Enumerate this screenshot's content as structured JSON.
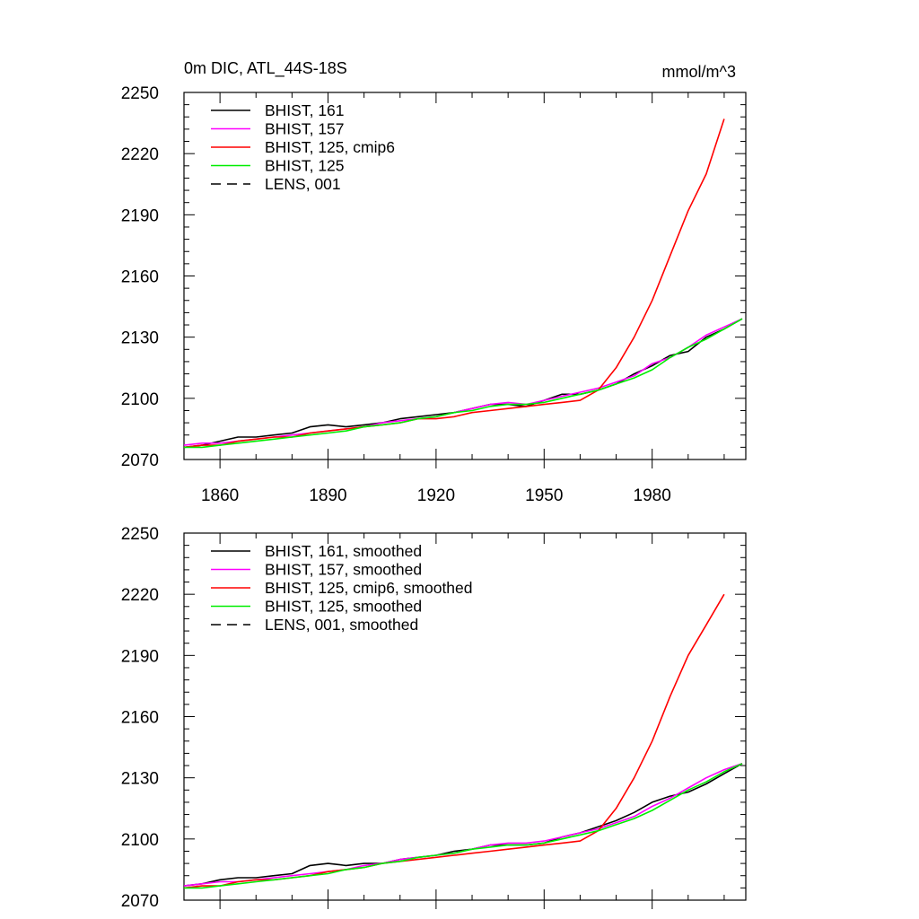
{
  "chart_data": [
    {
      "type": "line",
      "title": "0m DIC, ATL_44S-18S",
      "units": "mmol/m^3",
      "xlabel": "",
      "ylabel": "",
      "xlim": [
        1850,
        2006
      ],
      "ylim": [
        2070,
        2250
      ],
      "xticks": [
        "1860",
        "1890",
        "1920",
        "1950",
        "1980"
      ],
      "yticks": [
        "2070",
        "2100",
        "2130",
        "2160",
        "2190",
        "2220",
        "2250"
      ],
      "legend_position": "top-left",
      "series": [
        {
          "name": "BHIST, 161",
          "color": "#000000",
          "dash": "solid",
          "x": [
            1850,
            1855,
            1860,
            1865,
            1870,
            1875,
            1880,
            1885,
            1890,
            1895,
            1900,
            1905,
            1910,
            1915,
            1920,
            1925,
            1930,
            1935,
            1940,
            1945,
            1950,
            1955,
            1960,
            1965,
            1970,
            1975,
            1980,
            1985,
            1990,
            1995,
            2000,
            2005
          ],
          "y": [
            2076,
            2077,
            2079,
            2081,
            2081,
            2082,
            2083,
            2086,
            2087,
            2086,
            2087,
            2088,
            2090,
            2091,
            2092,
            2093,
            2095,
            2097,
            2097,
            2096,
            2099,
            2102,
            2102,
            2104,
            2107,
            2112,
            2116,
            2121,
            2123,
            2130,
            2134,
            2139
          ]
        },
        {
          "name": "BHIST, 157",
          "color": "#ff00ff",
          "dash": "solid",
          "x": [
            1850,
            1855,
            1860,
            1865,
            1870,
            1875,
            1880,
            1885,
            1890,
            1895,
            1900,
            1905,
            1910,
            1915,
            1920,
            1925,
            1930,
            1935,
            1940,
            1945,
            1950,
            1955,
            1960,
            1965,
            1970,
            1975,
            1980,
            1985,
            1990,
            1995,
            2000,
            2005
          ],
          "y": [
            2077,
            2078,
            2078,
            2079,
            2080,
            2081,
            2082,
            2083,
            2084,
            2085,
            2086,
            2088,
            2089,
            2090,
            2091,
            2093,
            2095,
            2097,
            2098,
            2097,
            2099,
            2101,
            2103,
            2105,
            2108,
            2111,
            2117,
            2120,
            2125,
            2131,
            2135,
            2139
          ]
        },
        {
          "name": "BHIST, 125, cmip6",
          "color": "#ff0000",
          "dash": "solid",
          "x": [
            1850,
            1855,
            1860,
            1865,
            1870,
            1875,
            1880,
            1885,
            1890,
            1895,
            1900,
            1905,
            1910,
            1915,
            1920,
            1925,
            1930,
            1935,
            1940,
            1945,
            1950,
            1955,
            1960,
            1965,
            1970,
            1975,
            1980,
            1985,
            1990,
            1995,
            2000
          ],
          "y": [
            2076,
            2077,
            2077,
            2079,
            2080,
            2081,
            2081,
            2083,
            2084,
            2085,
            2086,
            2087,
            2088,
            2090,
            2090,
            2091,
            2093,
            2094,
            2095,
            2096,
            2097,
            2098,
            2099,
            2104,
            2115,
            2130,
            2148,
            2170,
            2192,
            2210,
            2237
          ]
        },
        {
          "name": "BHIST, 125",
          "color": "#00ee00",
          "dash": "solid",
          "x": [
            1850,
            1855,
            1860,
            1865,
            1870,
            1875,
            1880,
            1885,
            1890,
            1895,
            1900,
            1905,
            1910,
            1915,
            1920,
            1925,
            1930,
            1935,
            1940,
            1945,
            1950,
            1955,
            1960,
            1965,
            1970,
            1975,
            1980,
            1985,
            1990,
            1995,
            2000,
            2005
          ],
          "y": [
            2076,
            2076,
            2077,
            2078,
            2079,
            2080,
            2081,
            2082,
            2083,
            2084,
            2086,
            2087,
            2088,
            2090,
            2091,
            2093,
            2094,
            2096,
            2097,
            2097,
            2098,
            2100,
            2102,
            2104,
            2107,
            2110,
            2114,
            2120,
            2125,
            2129,
            2134,
            2139
          ]
        },
        {
          "name": "LENS, 001",
          "color": "#000000",
          "dash": "dashed",
          "x": [],
          "y": []
        }
      ]
    },
    {
      "type": "line",
      "title": "",
      "units": "",
      "xlabel": "",
      "ylabel": "",
      "xlim": [
        1850,
        2006
      ],
      "ylim": [
        2070,
        2250
      ],
      "xticks": [
        "",
        "",
        "",
        "",
        ""
      ],
      "yticks": [
        "2070",
        "2100",
        "2130",
        "2160",
        "2190",
        "2220",
        "2250"
      ],
      "legend_position": "top-left",
      "series": [
        {
          "name": "BHIST, 161, smoothed",
          "color": "#000000",
          "dash": "solid",
          "x": [
            1850,
            1855,
            1860,
            1865,
            1870,
            1875,
            1880,
            1885,
            1890,
            1895,
            1900,
            1905,
            1910,
            1915,
            1920,
            1925,
            1930,
            1935,
            1940,
            1945,
            1950,
            1955,
            1960,
            1965,
            1970,
            1975,
            1980,
            1985,
            1990,
            1995,
            2000,
            2005
          ],
          "y": [
            2077,
            2078,
            2080,
            2081,
            2081,
            2082,
            2083,
            2087,
            2088,
            2087,
            2088,
            2088,
            2090,
            2091,
            2092,
            2094,
            2095,
            2097,
            2097,
            2097,
            2098,
            2101,
            2103,
            2106,
            2109,
            2113,
            2118,
            2121,
            2123,
            2127,
            2132,
            2137
          ]
        },
        {
          "name": "BHIST, 157, smoothed",
          "color": "#ff00ff",
          "dash": "solid",
          "x": [
            1850,
            1855,
            1860,
            1865,
            1870,
            1875,
            1880,
            1885,
            1890,
            1895,
            1900,
            1905,
            1910,
            1915,
            1920,
            1925,
            1930,
            1935,
            1940,
            1945,
            1950,
            1955,
            1960,
            1965,
            1970,
            1975,
            1980,
            1985,
            1990,
            1995,
            2000,
            2005
          ],
          "y": [
            2077,
            2078,
            2079,
            2079,
            2080,
            2081,
            2082,
            2083,
            2084,
            2085,
            2087,
            2088,
            2090,
            2091,
            2092,
            2093,
            2095,
            2097,
            2098,
            2098,
            2099,
            2101,
            2103,
            2105,
            2108,
            2111,
            2116,
            2120,
            2125,
            2130,
            2134,
            2137
          ]
        },
        {
          "name": "BHIST, 125, cmip6, smoothed",
          "color": "#ff0000",
          "dash": "solid",
          "x": [
            1850,
            1855,
            1860,
            1865,
            1870,
            1875,
            1880,
            1885,
            1890,
            1895,
            1900,
            1905,
            1910,
            1915,
            1920,
            1925,
            1930,
            1935,
            1940,
            1945,
            1950,
            1955,
            1960,
            1965,
            1970,
            1975,
            1980,
            1985,
            1990,
            1995,
            2000
          ],
          "y": [
            2076,
            2077,
            2077,
            2079,
            2080,
            2080,
            2081,
            2082,
            2084,
            2085,
            2086,
            2088,
            2089,
            2090,
            2091,
            2092,
            2093,
            2094,
            2095,
            2096,
            2097,
            2098,
            2099,
            2104,
            2115,
            2130,
            2148,
            2170,
            2190,
            2205,
            2220
          ]
        },
        {
          "name": "BHIST, 125, smoothed",
          "color": "#00ee00",
          "dash": "solid",
          "x": [
            1850,
            1855,
            1860,
            1865,
            1870,
            1875,
            1880,
            1885,
            1890,
            1895,
            1900,
            1905,
            1910,
            1915,
            1920,
            1925,
            1930,
            1935,
            1940,
            1945,
            1950,
            1955,
            1960,
            1965,
            1970,
            1975,
            1980,
            1985,
            1990,
            1995,
            2000,
            2005
          ],
          "y": [
            2076,
            2076,
            2077,
            2078,
            2079,
            2080,
            2081,
            2082,
            2083,
            2085,
            2086,
            2088,
            2089,
            2091,
            2092,
            2093,
            2095,
            2096,
            2097,
            2097,
            2098,
            2100,
            2102,
            2104,
            2107,
            2110,
            2114,
            2119,
            2124,
            2128,
            2133,
            2137
          ]
        },
        {
          "name": "LENS, 001, smoothed",
          "color": "#000000",
          "dash": "dashed",
          "x": [],
          "y": []
        }
      ]
    }
  ]
}
